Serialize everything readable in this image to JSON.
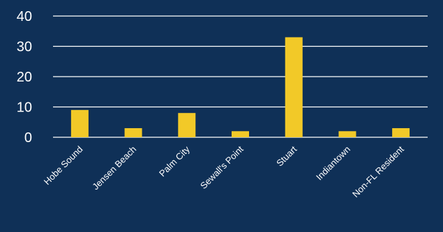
{
  "chart_data": {
    "type": "bar",
    "categories": [
      "Hobe Sound",
      "Jensen Beach",
      "Palm City",
      "Sewall's Point",
      "Stuart",
      "Indiantown",
      "Non-FL Resident"
    ],
    "values": [
      9,
      3,
      8,
      2,
      33,
      2,
      3
    ],
    "ylim": [
      0,
      40
    ],
    "yticks": [
      0,
      10,
      20,
      30,
      40
    ],
    "grid": true,
    "title": "",
    "xlabel": "",
    "ylabel": "",
    "colors": {
      "background": "#0f3057",
      "bar": "#f2c928",
      "text": "#ffffff",
      "grid": "#ffffff"
    }
  }
}
